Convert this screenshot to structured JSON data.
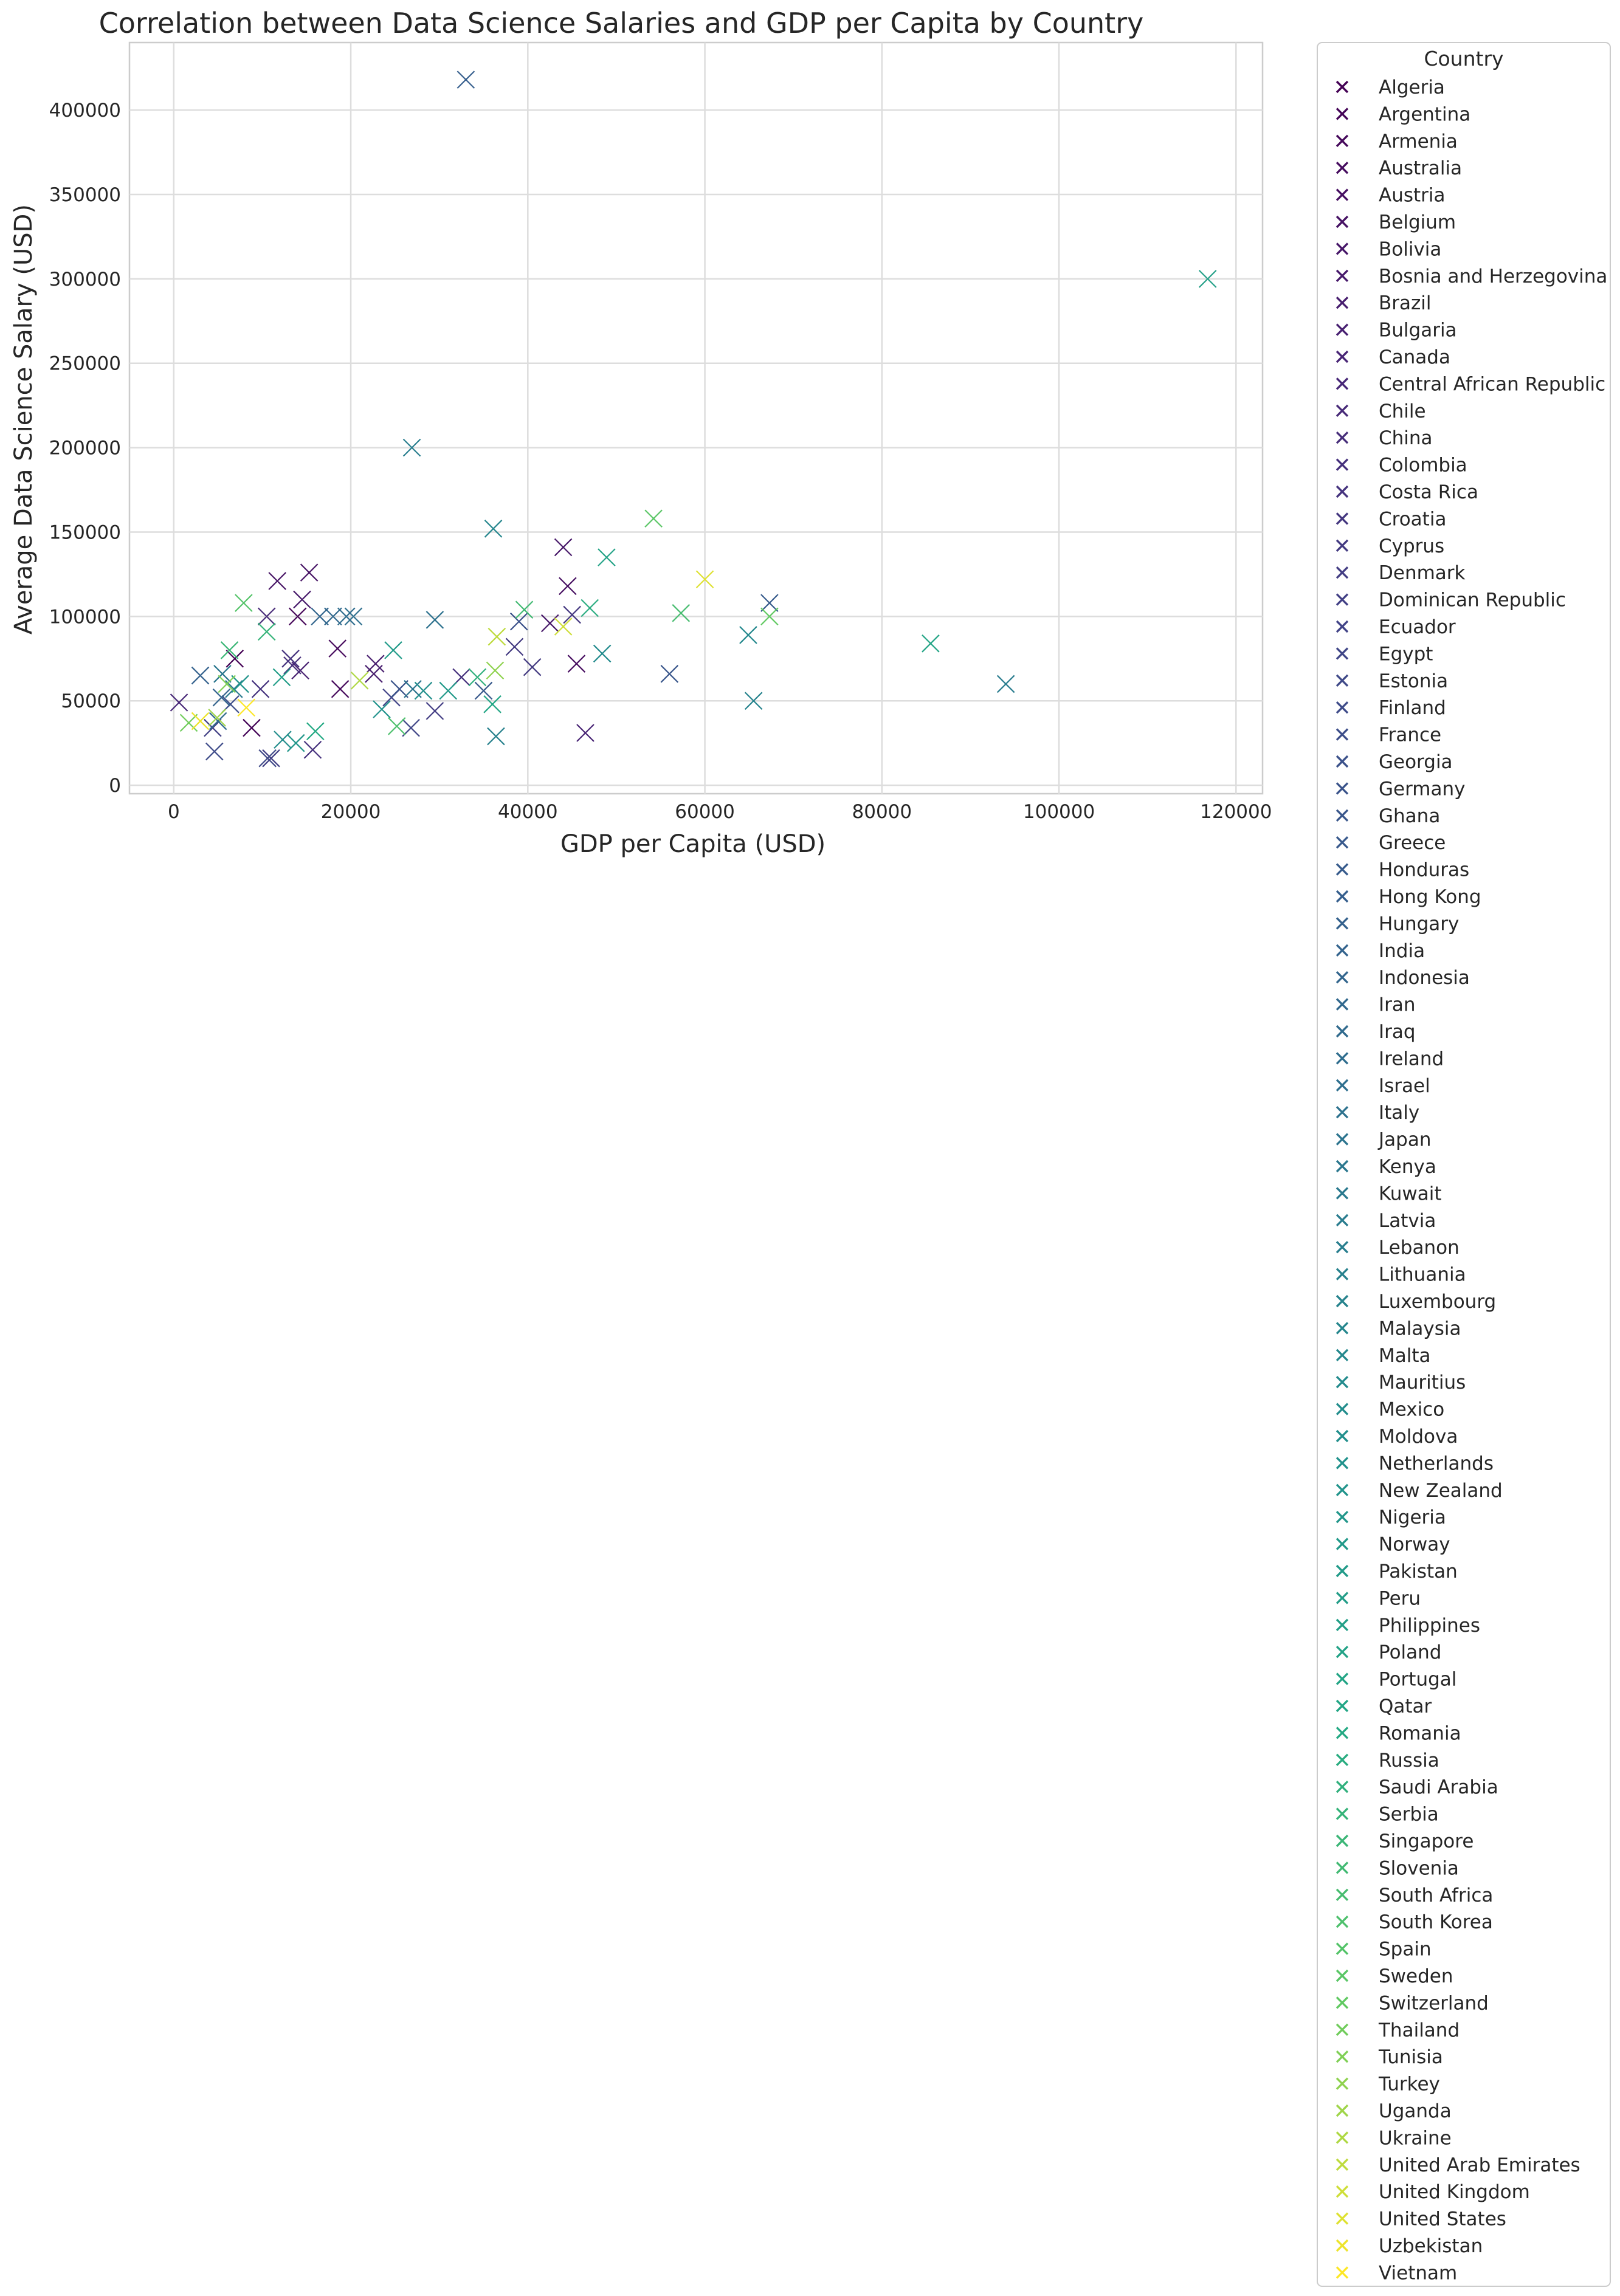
{
  "chart_data": {
    "type": "scatter",
    "title": "Correlation between Data Science Salaries and GDP per Capita by Country",
    "xlabel": "GDP per Capita (USD)",
    "ylabel": "Average Data Science Salary (USD)",
    "xlim": [
      -5000,
      123000
    ],
    "ylim": [
      -5000,
      440000
    ],
    "xticks": [
      0,
      20000,
      40000,
      60000,
      80000,
      100000,
      120000
    ],
    "yticks": [
      0,
      50000,
      100000,
      150000,
      200000,
      250000,
      300000,
      350000,
      400000
    ],
    "grid": true,
    "marker": "x",
    "colormap": "viridis",
    "legend": {
      "title": "Country",
      "placement": "outside-right"
    },
    "points_note_free": true,
    "series": [
      {
        "name": "Algeria",
        "points": [
          [
            6900,
            75000
          ]
        ]
      },
      {
        "name": "Argentina",
        "points": [
          [
            14000,
            100000
          ],
          [
            8800,
            34000
          ]
        ]
      },
      {
        "name": "Armenia",
        "points": [
          [
            18500,
            81000
          ],
          [
            18800,
            57000
          ]
        ]
      },
      {
        "name": "Australia",
        "points": [
          [
            45500,
            72000
          ]
        ]
      },
      {
        "name": "Austria",
        "points": [
          [
            44500,
            118000
          ]
        ]
      },
      {
        "name": "Belgium",
        "points": [
          [
            11700,
            121000
          ],
          [
            15300,
            126000
          ]
        ]
      },
      {
        "name": "Bolivia",
        "points": [
          [
            42500,
            96000
          ],
          [
            44000,
            141000
          ]
        ]
      },
      {
        "name": "Bosnia and Herzegovina",
        "points": [
          [
            14500,
            110000
          ]
        ]
      },
      {
        "name": "Brazil",
        "points": [
          [
            22800,
            72000
          ],
          [
            22600,
            66000
          ]
        ]
      },
      {
        "name": "Bulgaria",
        "points": [
          [
            14300,
            68000
          ]
        ]
      },
      {
        "name": "Canada",
        "points": [
          [
            46500,
            31000
          ]
        ]
      },
      {
        "name": "Central African Republic",
        "points": [
          [
            600,
            49000
          ]
        ]
      },
      {
        "name": "Chile",
        "points": [
          [
            10500,
            100000
          ]
        ]
      },
      {
        "name": "China",
        "points": [
          [
            13400,
            71000
          ]
        ]
      },
      {
        "name": "Colombia",
        "points": [
          [
            15700,
            21000
          ],
          [
            32500,
            64000
          ]
        ]
      },
      {
        "name": "Costa Rica",
        "points": [
          [
            9800,
            57000
          ],
          [
            13200,
            75000
          ]
        ]
      },
      {
        "name": "Croatia",
        "points": [
          [
            45000,
            101000
          ]
        ]
      },
      {
        "name": "Cyprus",
        "points": [
          [
            40500,
            70000
          ],
          [
            38500,
            82000
          ]
        ]
      },
      {
        "name": "Denmark",
        "points": [
          [
            29500,
            44000
          ]
        ]
      },
      {
        "name": "Dominican Republic",
        "points": [
          [
            4400,
            34000
          ],
          [
            11000,
            16000
          ]
        ]
      },
      {
        "name": "Ecuador",
        "points": [
          [
            24600,
            52000
          ]
        ]
      },
      {
        "name": "Egypt",
        "points": [
          [
            26800,
            34000
          ]
        ]
      },
      {
        "name": "Estonia",
        "points": [
          [
            10600,
            16000
          ]
        ]
      },
      {
        "name": "Finland",
        "points": [
          [
            4600,
            20000
          ]
        ]
      },
      {
        "name": "France",
        "points": [
          [
            6400,
            48000
          ]
        ]
      },
      {
        "name": "Georgia",
        "points": [
          [
            39000,
            97000
          ]
        ]
      },
      {
        "name": "Germany",
        "points": [
          [
            25500,
            57000
          ]
        ]
      },
      {
        "name": "Ghana",
        "points": [
          [
            56000,
            66000
          ]
        ]
      },
      {
        "name": "Greece",
        "points": [
          [
            35000,
            56000
          ]
        ]
      },
      {
        "name": "Honduras",
        "points": [
          [
            67300,
            108000
          ]
        ]
      },
      {
        "name": "Hong Kong",
        "points": [
          [
            33000,
            418000
          ]
        ]
      },
      {
        "name": "Hungary",
        "points": [
          [
            3000,
            65000
          ]
        ]
      },
      {
        "name": "India",
        "points": [
          [
            5400,
            52000
          ]
        ]
      },
      {
        "name": "Indonesia",
        "points": [
          [
            16500,
            100000
          ]
        ]
      },
      {
        "name": "Iran",
        "points": [
          [
            18000,
            100000
          ]
        ]
      },
      {
        "name": "Iraq",
        "points": [
          [
            5000,
            38000
          ]
        ]
      },
      {
        "name": "Ireland",
        "points": [
          [
            19500,
            100000
          ]
        ]
      },
      {
        "name": "Israel",
        "points": [
          [
            20300,
            100000
          ]
        ]
      },
      {
        "name": "Italy",
        "points": [
          [
            29500,
            98000
          ]
        ]
      },
      {
        "name": "Japan",
        "points": [
          [
            27000,
            57000
          ]
        ]
      },
      {
        "name": "Kenya",
        "points": [
          [
            5500,
            66000
          ]
        ]
      },
      {
        "name": "Kuwait",
        "points": [
          [
            6800,
            57000
          ]
        ]
      },
      {
        "name": "Latvia",
        "points": [
          [
            94000,
            60000
          ]
        ]
      },
      {
        "name": "Lebanon",
        "points": [
          [
            26900,
            200000
          ]
        ]
      },
      {
        "name": "Lithuania",
        "points": [
          [
            36400,
            29000
          ]
        ]
      },
      {
        "name": "Luxembourg",
        "points": [
          [
            65500,
            50000
          ]
        ]
      },
      {
        "name": "Malaysia",
        "points": [
          [
            36100,
            152000
          ]
        ]
      },
      {
        "name": "Malta",
        "points": [
          [
            64900,
            89000
          ]
        ]
      },
      {
        "name": "Mauritius",
        "points": [
          [
            48400,
            78000
          ]
        ]
      },
      {
        "name": "Mexico",
        "points": [
          [
            12300,
            27000
          ]
        ]
      },
      {
        "name": "Moldova",
        "points": [
          [
            28200,
            56000
          ]
        ]
      },
      {
        "name": "Netherlands",
        "points": [
          [
            23500,
            45000
          ]
        ]
      },
      {
        "name": "New Zealand",
        "points": [
          [
            7500,
            60000
          ]
        ]
      },
      {
        "name": "Nigeria",
        "points": [
          [
            13800,
            25000
          ]
        ]
      },
      {
        "name": "Norway",
        "points": [
          [
            31000,
            56000
          ]
        ]
      },
      {
        "name": "Pakistan",
        "points": [
          [
            24800,
            80000
          ]
        ]
      },
      {
        "name": "Peru",
        "points": [
          [
            12200,
            64000
          ]
        ]
      },
      {
        "name": "Philippines",
        "points": [
          [
            116800,
            300000
          ]
        ]
      },
      {
        "name": "Poland",
        "points": [
          [
            48900,
            135000
          ]
        ]
      },
      {
        "name": "Portugal",
        "points": [
          [
            85500,
            84000
          ]
        ]
      },
      {
        "name": "Qatar",
        "points": [
          [
            36000,
            48000
          ]
        ]
      },
      {
        "name": "Romania",
        "points": [
          [
            16000,
            32000
          ]
        ]
      },
      {
        "name": "Russia",
        "points": [
          [
            47000,
            105000
          ]
        ]
      },
      {
        "name": "Saudi Arabia",
        "points": [
          [
            34300,
            64000
          ]
        ]
      },
      {
        "name": "Serbia",
        "points": [
          [
            10500,
            91000
          ]
        ]
      },
      {
        "name": "Singapore",
        "points": [
          [
            6300,
            80000
          ]
        ]
      },
      {
        "name": "Slovenia",
        "points": [
          [
            39600,
            104000
          ]
        ]
      },
      {
        "name": "South Africa",
        "points": [
          [
            57300,
            102000
          ]
        ]
      },
      {
        "name": "South Korea",
        "points": [
          [
            25200,
            35000
          ]
        ]
      },
      {
        "name": "Spain",
        "points": [
          [
            7900,
            108000
          ]
        ]
      },
      {
        "name": "Sweden",
        "points": [
          [
            54200,
            158000
          ]
        ]
      },
      {
        "name": "Switzerland",
        "points": [
          [
            67300,
            100000
          ]
        ]
      },
      {
        "name": "Thailand",
        "points": [
          [
            1700,
            37000
          ]
        ]
      },
      {
        "name": "Tunisia",
        "points": [
          [
            6000,
            60000
          ]
        ]
      },
      {
        "name": "Turkey",
        "points": [
          [
            36300,
            68000
          ]
        ]
      },
      {
        "name": "Uganda",
        "points": [
          [
            4900,
            40000
          ]
        ]
      },
      {
        "name": "Ukraine",
        "points": [
          [
            21000,
            62000
          ]
        ]
      },
      {
        "name": "United Arab Emirates",
        "points": [
          [
            36500,
            88000
          ]
        ]
      },
      {
        "name": "United Kingdom",
        "points": [
          [
            44000,
            94000
          ]
        ]
      },
      {
        "name": "United States",
        "points": [
          [
            60000,
            122000
          ]
        ]
      },
      {
        "name": "Uzbekistan",
        "points": [
          [
            3000,
            38000
          ]
        ]
      },
      {
        "name": "Vietnam",
        "points": [
          [
            8200,
            46000
          ]
        ]
      }
    ]
  }
}
